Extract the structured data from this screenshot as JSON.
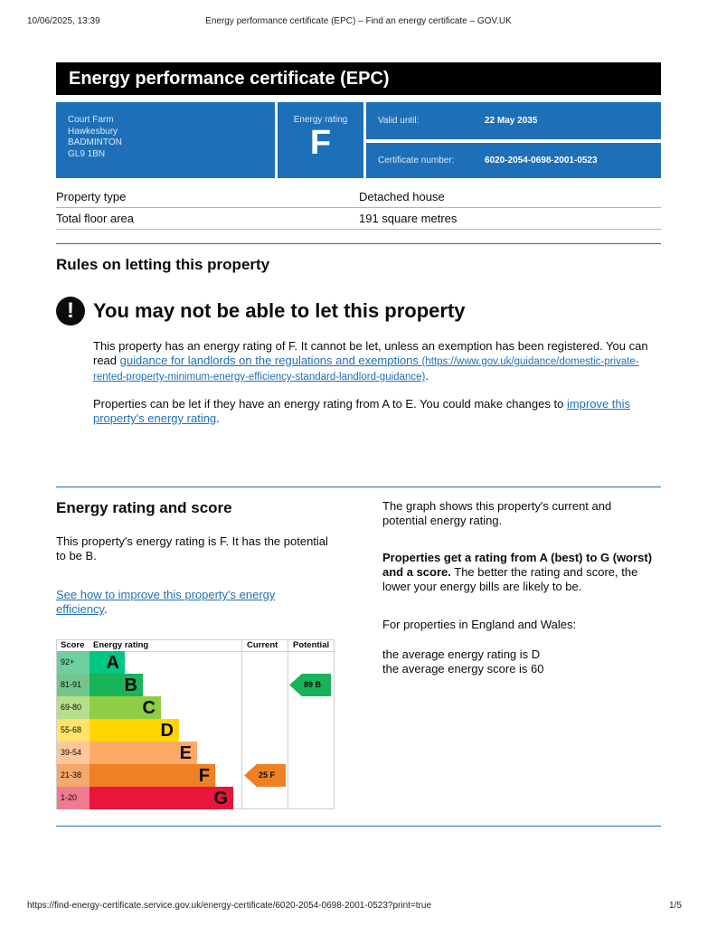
{
  "browser": {
    "date": "10/06/2025, 13:39",
    "page_title": "Energy performance certificate (EPC) – Find an energy certificate – GOV.UK",
    "url": "https://find-energy-certificate.service.gov.uk/energy-certificate/6020-2054-0698-2001-0523?print=true",
    "page": "1/5"
  },
  "title": "Energy performance certificate (EPC)",
  "address": [
    "Court Farm",
    "Hawkesbury",
    "BADMINTON",
    "GL9 1BN"
  ],
  "rating": {
    "label": "Energy rating",
    "value": "F"
  },
  "valid": {
    "label": "Valid until:",
    "value": "22 May 2035"
  },
  "certificate": {
    "label": "Certificate number:",
    "value": "6020-2054-0698-2001-0523"
  },
  "property": [
    {
      "k": "Property type",
      "v": "Detached house"
    },
    {
      "k": "Total floor area",
      "v": "191 square metres"
    }
  ],
  "rules": {
    "heading": "Rules on letting this property",
    "warning": "You may not be able to let this property",
    "p1a": "This property has an energy rating of F. It cannot be let, unless an exemption has been registered. You can read ",
    "link1": "guidance for landlords on the regulations and exemptions",
    "link1url": "(https://www.gov.uk/guidance/domestic-private-rented-property-minimum-energy-efficiency-standard-landlord-guidance)",
    "p1b": ".",
    "p2a": "Properties can be let if they have an energy rating from A to E. You could make changes to ",
    "link2": "improve this property's energy rating",
    "p2b": "."
  },
  "score": {
    "heading": "Energy rating and score",
    "p1": "This property's energy rating is F. It has the potential to be B.",
    "link": "See how to improve this property's energy efficiency",
    "link_end": ".",
    "r1": "The graph shows this property's current and potential energy rating.",
    "r2b": "Properties get a rating from A (best) to G (worst) and a score.",
    "r2": " The better the rating and score, the lower your energy bills are likely to be.",
    "r3": "For properties in England and Wales:",
    "r4": "the average energy rating is D",
    "r5": "the average energy score is 60"
  },
  "chart_data": {
    "type": "table",
    "headers": [
      "Score",
      "Energy rating",
      "Current",
      "Potential"
    ],
    "bands": [
      {
        "score": "92+",
        "letter": "A",
        "color": "#00c781",
        "light": "#6fcf9f"
      },
      {
        "score": "81-91",
        "letter": "B",
        "color": "#19b459",
        "light": "#72c68d"
      },
      {
        "score": "69-80",
        "letter": "C",
        "color": "#8dce46",
        "light": "#b7de8b"
      },
      {
        "score": "55-68",
        "letter": "D",
        "color": "#ffd500",
        "light": "#ffe36a"
      },
      {
        "score": "39-54",
        "letter": "E",
        "color": "#fcaa65",
        "light": "#fdc79a"
      },
      {
        "score": "21-38",
        "letter": "F",
        "color": "#ef8023",
        "light": "#f4a96a"
      },
      {
        "score": "1-20",
        "letter": "G",
        "color": "#e9153b",
        "light": "#f07a8f"
      }
    ],
    "current": {
      "score": 25,
      "band": "F",
      "label": "25  F"
    },
    "potential": {
      "score": 89,
      "band": "B",
      "label": "89  B"
    }
  }
}
